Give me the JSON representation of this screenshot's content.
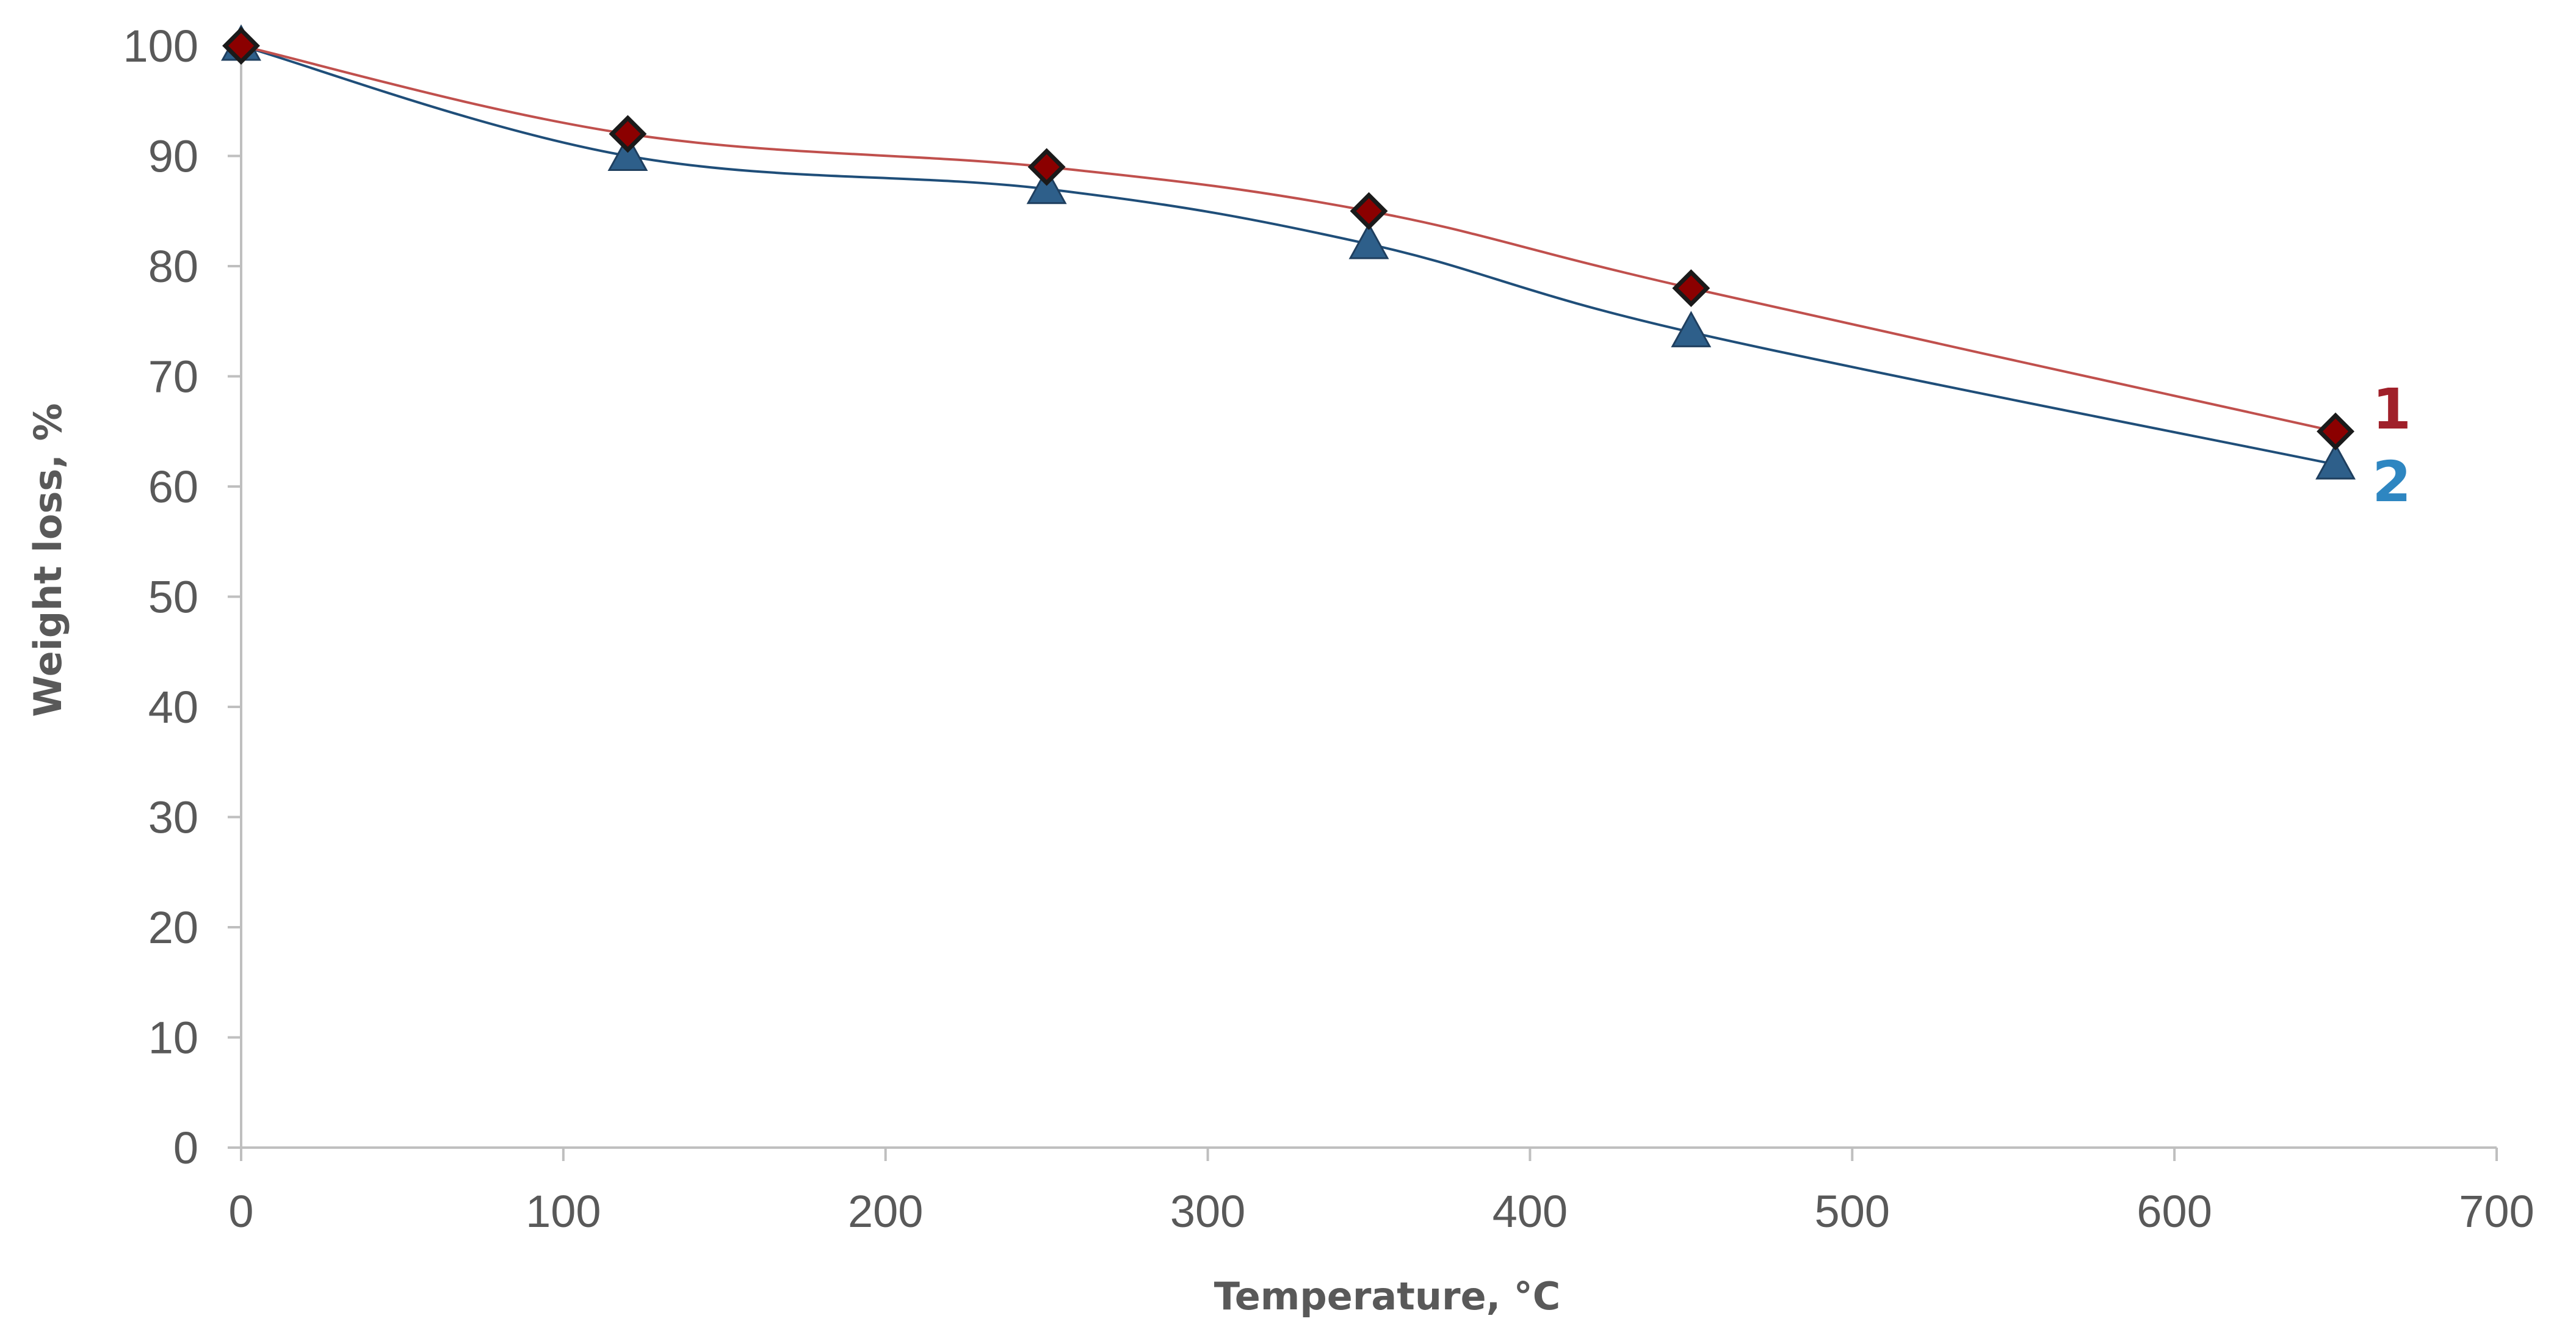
{
  "chart_data": {
    "type": "line",
    "title": "",
    "xlabel": "Temperature, °C",
    "ylabel": "Weight loss, %",
    "xlim": [
      0,
      700
    ],
    "ylim": [
      0,
      100
    ],
    "x_ticks": [
      "0",
      "100",
      "200",
      "300",
      "400",
      "500",
      "600",
      "700"
    ],
    "y_ticks": [
      "0",
      "10",
      "20",
      "30",
      "40",
      "50",
      "60",
      "70",
      "80",
      "90",
      "100"
    ],
    "grid": false,
    "legend": "none",
    "series": [
      {
        "label": "1",
        "color": "#c0504d",
        "marker": "diamond",
        "marker_fill": "#8b0000",
        "x": [
          0,
          120,
          250,
          350,
          450,
          650
        ],
        "y": [
          100,
          92,
          89,
          85,
          78,
          65
        ]
      },
      {
        "label": "2",
        "color": "#1f4e79",
        "marker": "triangle",
        "marker_fill": "#2e5f8a",
        "x": [
          0,
          120,
          250,
          350,
          450,
          650
        ],
        "y": [
          100,
          90,
          87,
          82,
          74,
          62
        ]
      }
    ],
    "series_label_colors": [
      "#a0202a",
      "#2e86c1"
    ]
  }
}
